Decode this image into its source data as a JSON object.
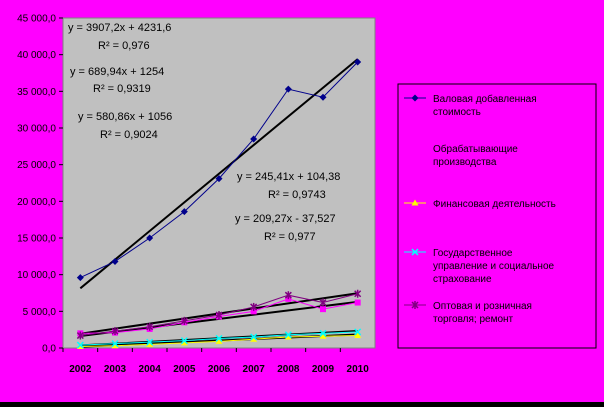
{
  "chart_data": {
    "type": "line",
    "categories": [
      "2002",
      "2003",
      "2004",
      "2005",
      "2006",
      "2007",
      "2008",
      "2009",
      "2010"
    ],
    "ylim": [
      0,
      45000
    ],
    "yticks": [
      "0,0",
      "5 000,0",
      "10 000,0",
      "15 000,0",
      "20 000,0",
      "25 000,0",
      "30 000,0",
      "35 000,0",
      "40 000,0",
      "45 000,0"
    ],
    "grid": false,
    "legend_position": "right",
    "plot_background": "#c0c0c0",
    "page_background": "#ff00ff",
    "series": [
      {
        "name": "Валовая добавленная стоимость",
        "color": "#00008b",
        "marker": "diamond",
        "values": [
          9600,
          11800,
          15000,
          18600,
          23100,
          28500,
          35300,
          34200,
          39000
        ]
      },
      {
        "name": "Обрабатывающие производства",
        "color": "#ff00ff",
        "marker": "square",
        "values": [
          2000,
          2100,
          2600,
          3500,
          4300,
          5000,
          6700,
          5300,
          6200
        ]
      },
      {
        "name": "Финансовая деятельность",
        "color": "#ffff00",
        "marker": "triangle",
        "values": [
          200,
          300,
          500,
          700,
          900,
          1200,
          1500,
          1600,
          1700
        ]
      },
      {
        "name": "Государственное управление и социальное страхование",
        "color": "#00ffff",
        "marker": "x",
        "values": [
          400,
          600,
          800,
          1000,
          1300,
          1500,
          1800,
          2000,
          2200
        ]
      },
      {
        "name": "Оптовая и розничная торговля; ремонт",
        "color": "#800080",
        "marker": "star",
        "values": [
          1700,
          2300,
          2900,
          3700,
          4500,
          5600,
          7200,
          6200,
          7400
        ]
      }
    ],
    "trendlines": [
      {
        "equation": "y = 3907,2x + 4231,6",
        "r2": "R² = 0,976",
        "slope": 3907.2,
        "intercept": 4231.6
      },
      {
        "equation": "y = 689,94x + 1254",
        "r2": "R² = 0,9319",
        "slope": 689.94,
        "intercept": 1254
      },
      {
        "equation": "y = 580,86x + 1056",
        "r2": "R² = 0,9024",
        "slope": 580.86,
        "intercept": 1056
      },
      {
        "equation": "y = 245,41x + 104,38",
        "r2": "R² = 0,9743",
        "slope": 245.41,
        "intercept": 104.38
      },
      {
        "equation": "y = 209,27x - 37,527",
        "r2": "R² = 0,977",
        "slope": 209.27,
        "intercept": -37.527
      }
    ]
  }
}
